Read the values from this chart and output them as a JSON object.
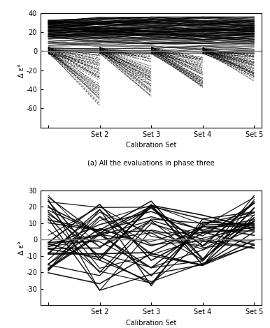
{
  "top_chart": {
    "caption": "(a) All the evaluations in phase three",
    "xlabel": "Calibration Set",
    "ylabel": "Δ ε°",
    "xtick_positions": [
      1,
      2,
      3,
      4,
      5
    ],
    "xticklabels": [
      "",
      "Set 2",
      "Set 3",
      "Set 4",
      "Set 5"
    ],
    "ylim": [
      -80,
      40
    ],
    "yticks": [
      -60,
      -40,
      -20,
      0,
      20,
      40
    ],
    "hline_y": 0
  },
  "bottom_chart": {
    "xlabel": "Calibration Set",
    "ylabel": "Δ ε°",
    "xtick_positions": [
      1,
      2,
      3,
      4,
      5
    ],
    "xticklabels": [
      "",
      "Set 2",
      "Set 3",
      "Set 4",
      "Set 5"
    ],
    "ylim": [
      -40,
      30
    ],
    "yticks": [
      -30,
      -20,
      -10,
      0,
      10,
      20,
      30
    ],
    "hline_y": 0
  },
  "figure_width": 3.86,
  "figure_height": 4.7,
  "dpi": 100
}
